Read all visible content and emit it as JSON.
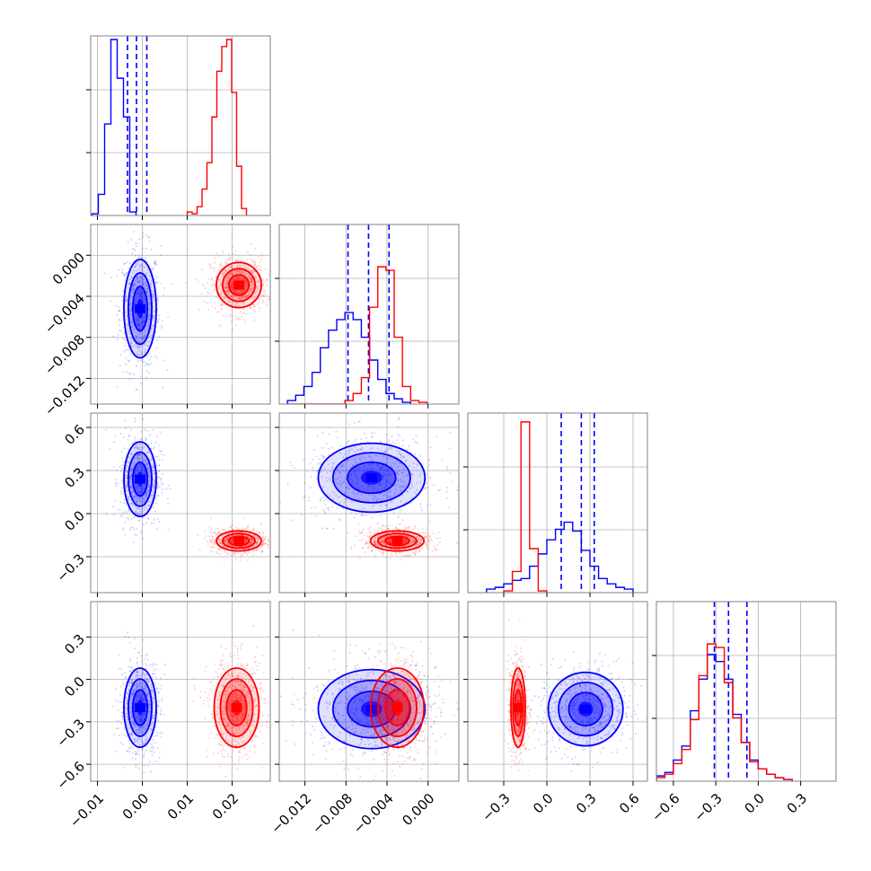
{
  "colors": {
    "blue": "#0000ff",
    "red": "#ff0000",
    "grid": "#b0b0b0",
    "frame": "#808080"
  },
  "chart_data": {
    "type": "corner",
    "title": "",
    "grid": true,
    "dimensions": [
      {
        "range": [
          -0.0115,
          0.0285
        ],
        "ticks": [
          "−0.01",
          "0.00",
          "0.01",
          "0.02"
        ],
        "tick_values": [
          -0.01,
          0.0,
          0.01,
          0.02
        ]
      },
      {
        "range": [
          -0.0145,
          0.003
        ],
        "ticks": [
          "−0.012",
          "−0.008",
          "−0.004",
          "0.000"
        ],
        "tick_values": [
          -0.012,
          -0.008,
          -0.004,
          0.0
        ]
      },
      {
        "range": [
          -0.55,
          0.7
        ],
        "ticks": [
          "−0.3",
          "0.0",
          "0.3",
          "0.6"
        ],
        "tick_values": [
          -0.3,
          0.0,
          0.3,
          0.6
        ]
      },
      {
        "range": [
          -0.72,
          0.55
        ],
        "ticks": [
          "−0.6",
          "−0.3",
          "0.0",
          "0.3"
        ],
        "tick_values": [
          -0.6,
          -0.3,
          0.0,
          0.3
        ]
      }
    ],
    "series": [
      {
        "color": "blue",
        "quantile_lines": [
          [
            -0.0033,
            -0.0013,
            0.001
          ],
          [
            -0.0078,
            -0.0058,
            -0.0038
          ],
          [
            0.1,
            0.24,
            0.33
          ],
          [
            -0.31,
            -0.21,
            -0.08
          ]
        ],
        "histograms": [
          {
            "start": -0.0112,
            "step": 0.0014,
            "counts": [
              0.01,
              0.12,
              0.52,
              1.0,
              0.78,
              0.56,
              0.02
            ]
          },
          {
            "start": -0.0137,
            "step": 0.0008,
            "counts": [
              0.02,
              0.05,
              0.1,
              0.18,
              0.32,
              0.42,
              0.48,
              0.52,
              0.48,
              0.38,
              0.25,
              0.14,
              0.06,
              0.03,
              0.01
            ]
          },
          {
            "start": -0.42,
            "step": 0.06,
            "counts": [
              0.02,
              0.03,
              0.05,
              0.07,
              0.08,
              0.15,
              0.22,
              0.3,
              0.36,
              0.4,
              0.35,
              0.24,
              0.15,
              0.08,
              0.05,
              0.03,
              0.02
            ]
          },
          {
            "start": -0.72,
            "step": 0.06,
            "counts": [
              0.03,
              0.05,
              0.12,
              0.2,
              0.4,
              0.58,
              0.72,
              0.68,
              0.58,
              0.38,
              0.22,
              0.12,
              0.07,
              0.04,
              0.02,
              0.01
            ]
          }
        ],
        "clusters": [
          {
            "x": 0,
            "y": 1,
            "cx": -0.0005,
            "cy": -0.0052,
            "sx": 0.0018,
            "sy": 0.0024
          },
          {
            "x": 0,
            "y": 2,
            "cx": -0.0005,
            "cy": 0.24,
            "sx": 0.0018,
            "sy": 0.13
          },
          {
            "x": 0,
            "y": 3,
            "cx": -0.0005,
            "cy": -0.2,
            "sx": 0.0018,
            "sy": 0.14
          },
          {
            "x": 1,
            "y": 2,
            "cx": -0.0055,
            "cy": 0.25,
            "sx": 0.0026,
            "sy": 0.12
          },
          {
            "x": 1,
            "y": 3,
            "cx": -0.0055,
            "cy": -0.21,
            "sx": 0.0026,
            "sy": 0.14
          },
          {
            "x": 2,
            "y": 3,
            "cx": 0.27,
            "cy": -0.21,
            "sx": 0.13,
            "sy": 0.13
          }
        ]
      },
      {
        "color": "red",
        "quantile_lines": [
          [],
          [],
          [],
          []
        ],
        "histograms": [
          {
            "start": 0.01,
            "step": 0.0011,
            "counts": [
              0.02,
              0.01,
              0.05,
              0.15,
              0.3,
              0.56,
              0.82,
              0.96,
              1.0,
              0.7,
              0.28,
              0.04
            ]
          },
          {
            "start": -0.0137,
            "step": 0.0008,
            "counts": [
              0.0,
              0.0,
              0.0,
              0.0,
              0.0,
              0.0,
              0.0,
              0.02,
              0.06,
              0.15,
              0.55,
              0.78,
              0.76,
              0.38,
              0.1,
              0.02,
              0.01
            ]
          },
          {
            "start": -0.3,
            "step": 0.06,
            "counts": [
              0.01,
              0.12,
              0.97,
              0.25,
              0.01
            ]
          },
          {
            "start": -0.72,
            "step": 0.06,
            "counts": [
              0.02,
              0.04,
              0.1,
              0.18,
              0.35,
              0.6,
              0.78,
              0.76,
              0.56,
              0.36,
              0.22,
              0.11,
              0.07,
              0.04,
              0.02,
              0.01
            ]
          }
        ],
        "clusters": [
          {
            "x": 0,
            "y": 1,
            "cx": 0.0215,
            "cy": -0.0029,
            "sx": 0.0025,
            "sy": 0.0011
          },
          {
            "x": 0,
            "y": 2,
            "cx": 0.0215,
            "cy": -0.19,
            "sx": 0.0025,
            "sy": 0.035
          },
          {
            "x": 0,
            "y": 3,
            "cx": 0.021,
            "cy": -0.2,
            "sx": 0.0025,
            "sy": 0.14
          },
          {
            "x": 1,
            "y": 2,
            "cx": -0.003,
            "cy": -0.19,
            "sx": 0.0013,
            "sy": 0.035
          },
          {
            "x": 1,
            "y": 3,
            "cx": -0.003,
            "cy": -0.2,
            "sx": 0.0013,
            "sy": 0.14
          },
          {
            "x": 2,
            "y": 3,
            "cx": -0.2,
            "cy": -0.2,
            "sx": 0.025,
            "sy": 0.14
          }
        ]
      }
    ]
  }
}
